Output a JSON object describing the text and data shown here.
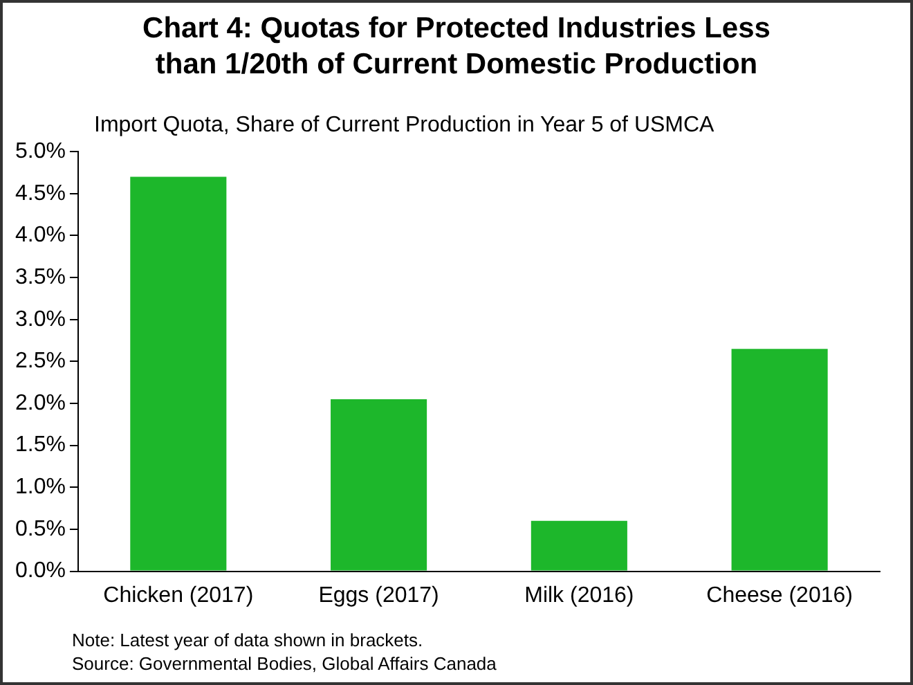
{
  "chart_data": {
    "type": "bar",
    "title": "Chart 4: Quotas for Protected Industries Less than 1/20th of Current Domestic Production",
    "subtitle": "Import Quota, Share of Current Production in Year 5 of USMCA",
    "categories": [
      "Chicken (2017)",
      "Eggs (2017)",
      "Milk (2016)",
      "Cheese (2016)"
    ],
    "values": [
      4.7,
      2.05,
      0.6,
      2.65
    ],
    "color": "#1db72b",
    "ylim": [
      0,
      5
    ],
    "yticks": [
      {
        "value": 0,
        "label": "0.0%"
      },
      {
        "value": 0.5,
        "label": "0.5%"
      },
      {
        "value": 1,
        "label": "1.0%"
      },
      {
        "value": 1.5,
        "label": "1.5%"
      },
      {
        "value": 2,
        "label": "2.0%"
      },
      {
        "value": 2.5,
        "label": "2.5%"
      },
      {
        "value": 3,
        "label": "3.0%"
      },
      {
        "value": 3.5,
        "label": "3.5%"
      },
      {
        "value": 4,
        "label": "4.0%"
      },
      {
        "value": 4.5,
        "label": "4.5%"
      },
      {
        "value": 5,
        "label": "5.0%"
      }
    ],
    "grid": false,
    "legend": false,
    "annotations": [
      "Note: Latest year of data shown in brackets.",
      "Source: Governmental Bodies, Global Affairs Canada"
    ]
  }
}
